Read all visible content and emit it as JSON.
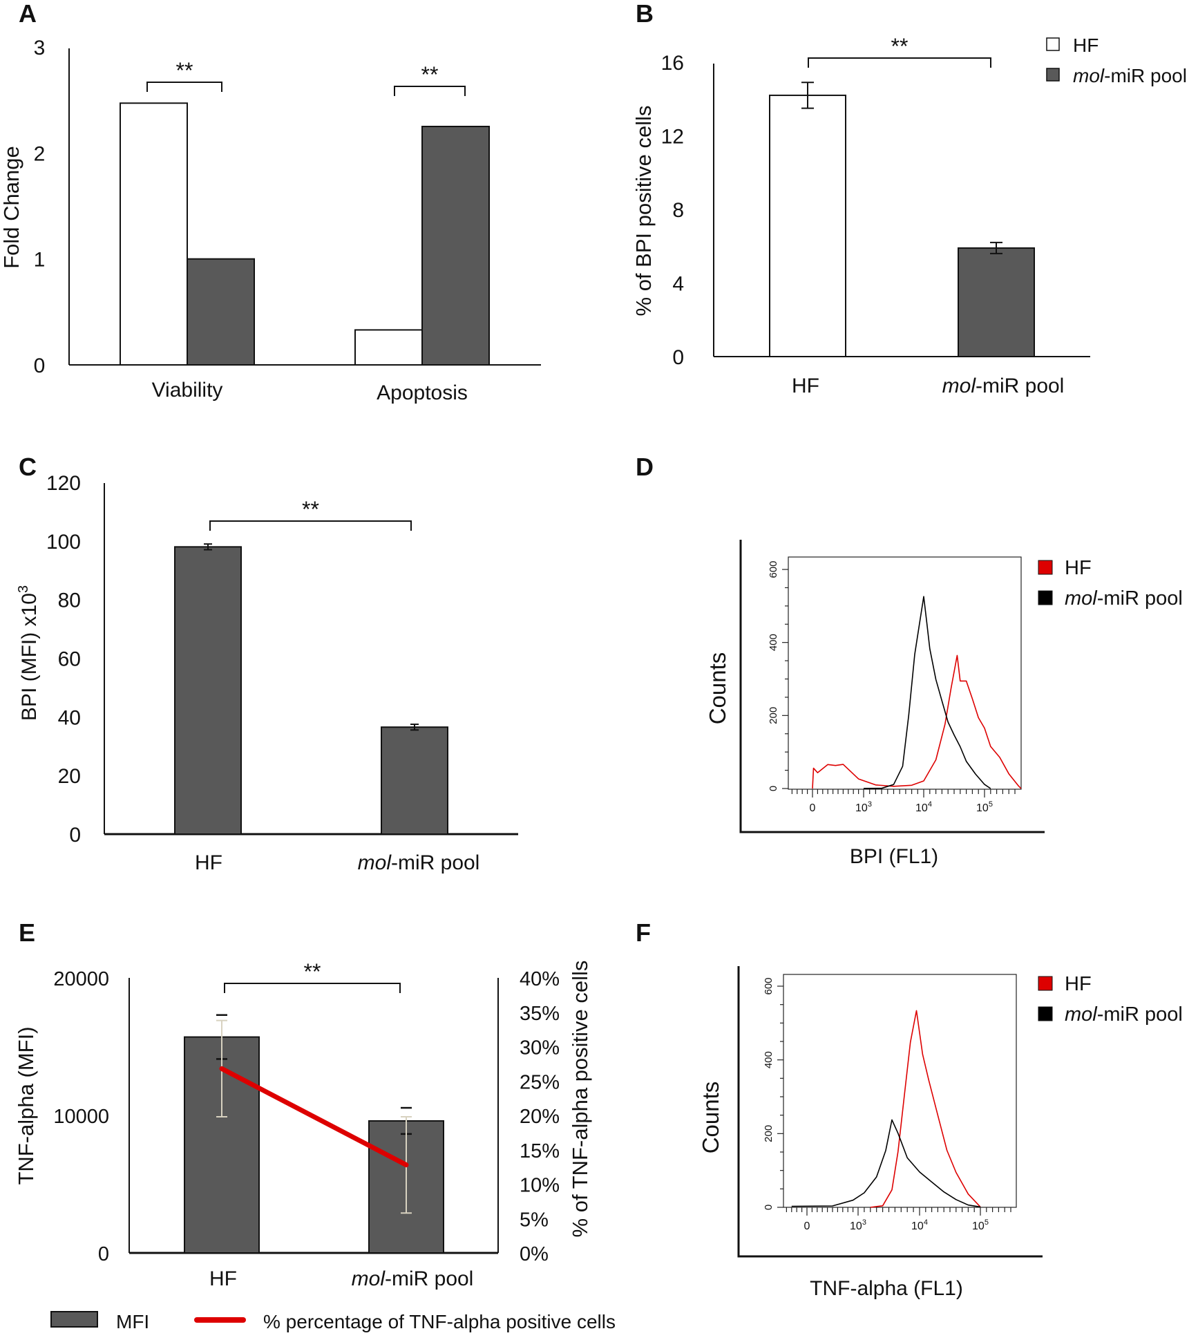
{
  "colors": {
    "hf_bar": "#ffffff",
    "mol_bar": "#595959",
    "hist_hf": "#dd0000",
    "hist_mol": "#000000",
    "line_red": "#dd0000",
    "err_beige": "#d8d2c0"
  },
  "chart_data": [
    {
      "panel": "A",
      "type": "bar",
      "ylabel": "Fold Change",
      "ylim": [
        0,
        3
      ],
      "yticks": [
        "0",
        "1",
        "2",
        "3"
      ],
      "categories": [
        "Viability",
        "Apoptosis"
      ],
      "series": [
        {
          "name": "HF",
          "values": [
            2.47,
            0.33
          ]
        },
        {
          "name": "mol-miR pool",
          "values": [
            1.0,
            2.25
          ]
        }
      ],
      "significance": [
        "**",
        "**"
      ]
    },
    {
      "panel": "B",
      "type": "bar",
      "ylabel": "% of BPI positive cells",
      "ylim": [
        0,
        16
      ],
      "yticks": [
        "0",
        "4",
        "8",
        "12",
        "16"
      ],
      "categories": [
        "HF",
        "mol-miR pool"
      ],
      "category_italic_prefix": [
        "",
        "mol"
      ],
      "values": [
        14.2,
        5.9
      ],
      "errors": [
        0.7,
        0.3
      ],
      "significance": "**",
      "legend": [
        {
          "label_italic": "",
          "label": "HF"
        },
        {
          "label_italic": "mol",
          "label": "-miR pool"
        }
      ],
      "legend_position": "top-right"
    },
    {
      "panel": "C",
      "type": "bar",
      "ylabel": "BPI (MFI) x10",
      "ylabel_sup": "3",
      "ylim": [
        0,
        120
      ],
      "yticks": [
        "0",
        "20",
        "40",
        "60",
        "80",
        "100",
        "120"
      ],
      "categories": [
        "HF",
        "mol-miR pool"
      ],
      "category_italic_prefix": [
        "",
        "mol"
      ],
      "values": [
        98,
        36.5
      ],
      "errors": [
        0.5,
        0.5
      ],
      "significance": "**"
    },
    {
      "panel": "D",
      "type": "line",
      "ylabel": "Counts",
      "xlabel": "BPI (FL1)",
      "ylim": [
        0,
        600
      ],
      "yticks": [
        "0",
        "200",
        "400",
        "600"
      ],
      "xticks": [
        {
          "base": "0",
          "exp": ""
        },
        {
          "base": "10",
          "exp": "3"
        },
        {
          "base": "10",
          "exp": "4"
        },
        {
          "base": "10",
          "exp": "5"
        }
      ],
      "legend": [
        {
          "label_italic": "",
          "label": "HF"
        },
        {
          "label_italic": "mol",
          "label": "-miR pool"
        }
      ],
      "legend_position": "right",
      "series": [
        {
          "name": "HF",
          "points": [
            [
              0,
              0
            ],
            [
              0.02,
              50
            ],
            [
              0.1,
              45
            ],
            [
              0.3,
              70
            ],
            [
              0.45,
              65
            ],
            [
              0.6,
              60
            ],
            [
              0.9,
              30
            ],
            [
              1.2,
              10
            ],
            [
              1.5,
              5
            ],
            [
              1.8,
              10
            ],
            [
              2.0,
              25
            ],
            [
              2.2,
              80
            ],
            [
              2.35,
              170
            ],
            [
              2.45,
              280
            ],
            [
              2.55,
              360
            ],
            [
              2.6,
              290
            ],
            [
              2.7,
              300
            ],
            [
              2.8,
              240
            ],
            [
              2.9,
              200
            ],
            [
              3.0,
              160
            ],
            [
              3.1,
              120
            ],
            [
              3.25,
              80
            ],
            [
              3.4,
              40
            ],
            [
              3.55,
              10
            ],
            [
              3.6,
              0
            ]
          ]
        },
        {
          "name": "mol-miR pool",
          "points": [
            [
              1.0,
              0
            ],
            [
              1.3,
              0
            ],
            [
              1.5,
              10
            ],
            [
              1.65,
              60
            ],
            [
              1.75,
              200
            ],
            [
              1.85,
              370
            ],
            [
              1.95,
              470
            ],
            [
              2.0,
              530
            ],
            [
              2.05,
              460
            ],
            [
              2.1,
              380
            ],
            [
              2.2,
              300
            ],
            [
              2.3,
              240
            ],
            [
              2.4,
              180
            ],
            [
              2.5,
              150
            ],
            [
              2.6,
              110
            ],
            [
              2.7,
              80
            ],
            [
              2.85,
              40
            ],
            [
              3.0,
              10
            ],
            [
              3.1,
              0
            ]
          ]
        }
      ]
    },
    {
      "panel": "E",
      "type": "bar",
      "ylabel": "TNF-alpha (MFI)",
      "ylim": [
        0,
        20000
      ],
      "yticks": [
        "0",
        "10000",
        "20000"
      ],
      "y2label": "% of TNF-alpha positive cells",
      "y2lim": [
        0,
        40
      ],
      "y2ticks": [
        "0%",
        "5%",
        "10%",
        "15%",
        "20%",
        "25%",
        "30%",
        "35%",
        "40%"
      ],
      "categories": [
        "HF",
        "mol-miR pool"
      ],
      "category_italic_prefix": [
        "",
        "mol"
      ],
      "values": [
        15700,
        9600
      ],
      "errors": [
        1600,
        950
      ],
      "line_values": [
        26.8,
        12.8
      ],
      "line_errors": [
        7.0,
        7.0
      ],
      "significance": "**",
      "legend": [
        {
          "label": "MFI"
        },
        {
          "label": "% percentage of TNF-alpha positive cells"
        }
      ],
      "legend_position": "bottom"
    },
    {
      "panel": "F",
      "type": "line",
      "ylabel": "Counts",
      "xlabel": "TNF-alpha (FL1)",
      "ylim": [
        0,
        600
      ],
      "yticks": [
        "0",
        "200",
        "400",
        "600"
      ],
      "xticks": [
        {
          "base": "0",
          "exp": ""
        },
        {
          "base": "10",
          "exp": "3"
        },
        {
          "base": "10",
          "exp": "4"
        },
        {
          "base": "10",
          "exp": "5"
        }
      ],
      "legend": [
        {
          "label_italic": "",
          "label": "HF"
        },
        {
          "label_italic": "mol",
          "label": "-miR pool"
        }
      ],
      "legend_position": "right",
      "series": [
        {
          "name": "HF",
          "points": [
            [
              1.2,
              0
            ],
            [
              1.4,
              5
            ],
            [
              1.55,
              50
            ],
            [
              1.65,
              150
            ],
            [
              1.75,
              300
            ],
            [
              1.85,
              450
            ],
            [
              1.95,
              530
            ],
            [
              2.05,
              420
            ],
            [
              2.15,
              340
            ],
            [
              2.3,
              250
            ],
            [
              2.45,
              160
            ],
            [
              2.6,
              90
            ],
            [
              2.8,
              30
            ],
            [
              3.0,
              0
            ]
          ]
        },
        {
          "name": "mol-miR pool",
          "points": [
            [
              -0.3,
              2
            ],
            [
              0.5,
              5
            ],
            [
              0.9,
              20
            ],
            [
              1.1,
              40
            ],
            [
              1.3,
              80
            ],
            [
              1.45,
              150
            ],
            [
              1.55,
              240
            ],
            [
              1.65,
              200
            ],
            [
              1.8,
              140
            ],
            [
              2.0,
              100
            ],
            [
              2.2,
              70
            ],
            [
              2.4,
              40
            ],
            [
              2.6,
              20
            ],
            [
              2.8,
              5
            ],
            [
              3.0,
              0
            ]
          ]
        }
      ]
    }
  ]
}
